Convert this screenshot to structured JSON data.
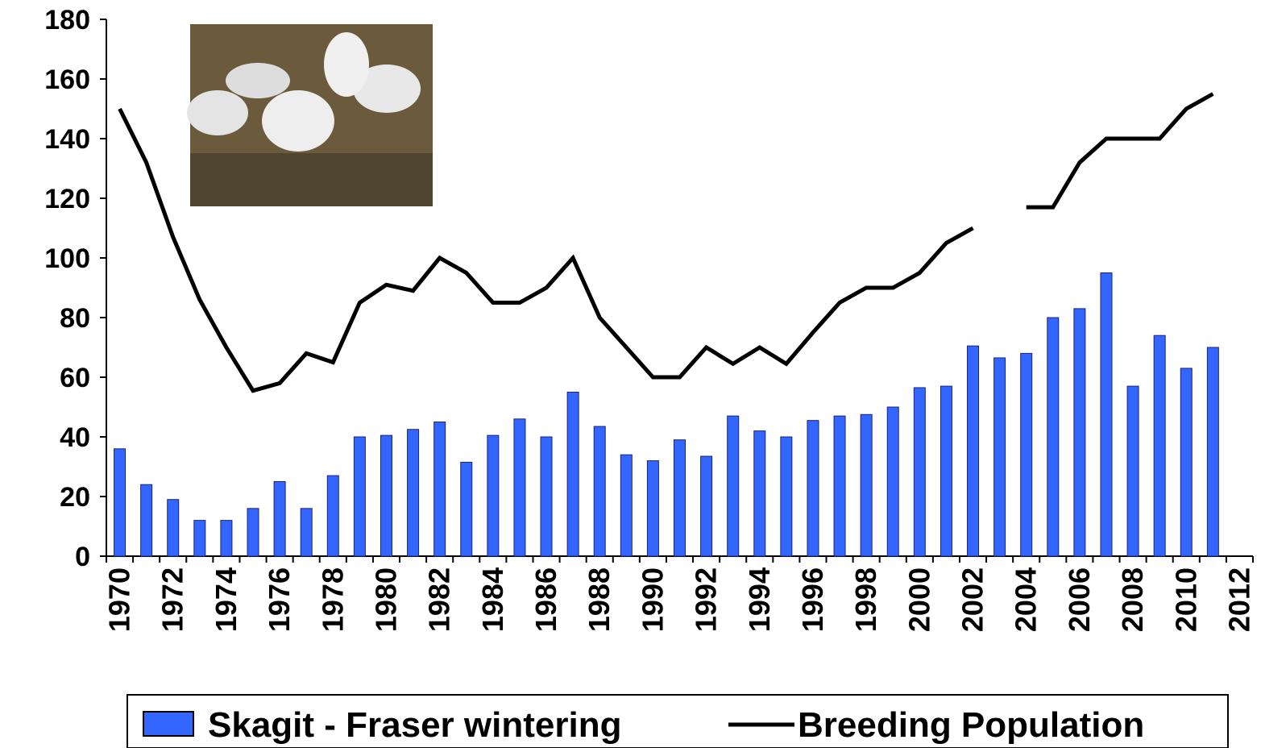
{
  "chart_data": {
    "type": "bar_line",
    "categories": [
      "1970",
      null,
      "1972",
      null,
      "1974",
      null,
      "1976",
      null,
      "1978",
      null,
      "1980",
      null,
      "1982",
      null,
      "1984",
      null,
      "1986",
      null,
      "1988",
      null,
      "1990",
      null,
      "1992",
      null,
      "1994",
      null,
      "1996",
      null,
      "1998",
      null,
      "2000",
      null,
      "2002",
      null,
      "2004",
      null,
      "2006",
      null,
      "2008",
      null,
      "2010",
      null,
      "2012"
    ],
    "series": [
      {
        "name": "Skagit - Fraser wintering",
        "type": "bar",
        "color": "#3366ff",
        "values": [
          36,
          24,
          19,
          12,
          12,
          16,
          25,
          16,
          27,
          40,
          40.5,
          42.5,
          45,
          31.5,
          40.5,
          46,
          40,
          55,
          43.5,
          34,
          32,
          39,
          33.5,
          47,
          42,
          40,
          45.5,
          47,
          47.5,
          50,
          56.5,
          57,
          70.5,
          66.5,
          68,
          80,
          83,
          95,
          57,
          74,
          63,
          70,
          null
        ]
      },
      {
        "name": "Breeding Population",
        "type": "line",
        "color": "#000000",
        "values": [
          150,
          132,
          107,
          86,
          70,
          55.5,
          58,
          68,
          65,
          85,
          91,
          89,
          100,
          95,
          85,
          85,
          90,
          100,
          80,
          70,
          60,
          60,
          70,
          64.5,
          70,
          64.5,
          75,
          85,
          90,
          90,
          95,
          105,
          110,
          null,
          117,
          117,
          132,
          140,
          140,
          140,
          150,
          155,
          null
        ]
      }
    ],
    "ylim": [
      0,
      180
    ],
    "yticks": [
      0,
      20,
      40,
      60,
      80,
      100,
      120,
      140,
      160,
      180
    ]
  }
}
